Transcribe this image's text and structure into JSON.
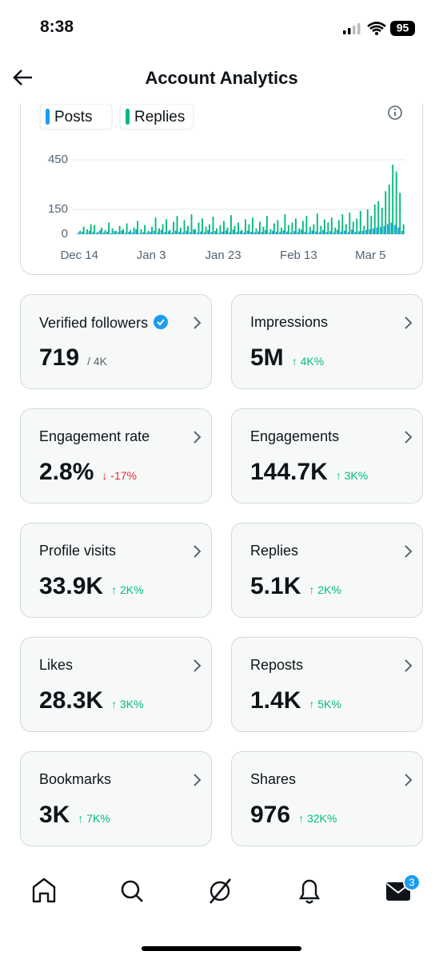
{
  "status_bar": {
    "time": "8:38",
    "battery": "95"
  },
  "header": {
    "title": "Account Analytics"
  },
  "chart_data": {
    "type": "bar",
    "categories": [
      "Dec 14",
      null,
      null,
      null,
      null,
      null,
      null,
      null,
      null,
      null,
      null,
      null,
      null,
      null,
      null,
      null,
      null,
      null,
      null,
      null,
      "Jan 3",
      null,
      null,
      null,
      null,
      null,
      null,
      null,
      null,
      null,
      null,
      null,
      null,
      null,
      null,
      null,
      null,
      null,
      null,
      null,
      "Jan 23",
      null,
      null,
      null,
      null,
      null,
      null,
      null,
      null,
      null,
      null,
      null,
      null,
      null,
      null,
      null,
      null,
      null,
      null,
      null,
      null,
      "Feb 13",
      null,
      null,
      null,
      null,
      null,
      null,
      null,
      null,
      null,
      null,
      null,
      null,
      null,
      null,
      null,
      null,
      null,
      null,
      null,
      "Mar 5",
      null,
      null,
      null,
      null,
      null,
      null,
      null,
      null,
      null
    ],
    "series": [
      {
        "name": "Posts",
        "color": "#1d9bf0",
        "values": [
          10,
          15,
          5,
          20,
          12,
          8,
          25,
          10,
          15,
          5,
          18,
          12,
          22,
          8,
          14,
          10,
          30,
          6,
          12,
          9,
          15,
          20,
          10,
          25,
          12,
          18,
          8,
          22,
          14,
          10,
          20,
          12,
          28,
          9,
          16,
          11,
          24,
          13,
          19,
          7,
          15,
          22,
          10,
          26,
          12,
          18,
          9,
          21,
          14,
          11,
          17,
          13,
          25,
          8,
          20,
          15,
          11,
          23,
          16,
          10,
          19,
          12,
          27,
          14,
          9,
          22,
          16,
          11,
          24,
          13,
          18,
          10,
          26,
          15,
          21,
          12,
          28,
          14,
          17,
          20,
          25,
          30,
          35,
          40,
          45,
          50,
          60,
          70,
          55,
          40,
          20
        ]
      },
      {
        "name": "Replies",
        "color": "#00ba7c",
        "values": [
          20,
          45,
          30,
          60,
          55,
          15,
          40,
          25,
          70,
          35,
          20,
          50,
          30,
          65,
          25,
          40,
          80,
          30,
          55,
          20,
          45,
          100,
          35,
          60,
          90,
          25,
          75,
          110,
          40,
          85,
          50,
          120,
          30,
          70,
          95,
          45,
          60,
          105,
          35,
          55,
          80,
          40,
          115,
          50,
          70,
          25,
          90,
          60,
          100,
          35,
          75,
          45,
          110,
          30,
          65,
          85,
          40,
          120,
          55,
          70,
          95,
          35,
          80,
          110,
          45,
          60,
          125,
          50,
          90,
          70,
          100,
          40,
          85,
          120,
          60,
          130,
          75,
          95,
          140,
          50,
          150,
          110,
          180,
          200,
          160,
          260,
          300,
          420,
          380,
          250,
          60
        ]
      }
    ],
    "ylim": [
      0,
      450
    ],
    "yticks": [
      0,
      150,
      450
    ],
    "grid": true
  },
  "cards": [
    {
      "title": "Verified followers",
      "value": "719",
      "sub": "/ 4K",
      "sub_color": "#536471"
    },
    {
      "title": "Impressions",
      "value": "5M",
      "sub": "↑ 4K%",
      "sub_color": "#00ba7c"
    },
    {
      "title": "Engagement rate",
      "value": "2.8%",
      "sub": "↓ -17%",
      "sub_color": "#f4212e"
    },
    {
      "title": "Engagements",
      "value": "144.7K",
      "sub": "↑ 3K%",
      "sub_color": "#00ba7c"
    },
    {
      "title": "Profile visits",
      "value": "33.9K",
      "sub": "↑ 2K%",
      "sub_color": "#00ba7c"
    },
    {
      "title": "Replies",
      "value": "5.1K",
      "sub": "↑ 2K%",
      "sub_color": "#00ba7c"
    },
    {
      "title": "Likes",
      "value": "28.3K",
      "sub": "↑ 3K%",
      "sub_color": "#00ba7c"
    },
    {
      "title": "Reposts",
      "value": "1.4K",
      "sub": "↑ 5K%",
      "sub_color": "#00ba7c"
    },
    {
      "title": "Bookmarks",
      "value": "3K",
      "sub": "↑ 7K%",
      "sub_color": "#00ba7c"
    },
    {
      "title": "Shares",
      "value": "976",
      "sub": "↑ 32K%",
      "sub_color": "#00ba7c"
    }
  ],
  "nav": {
    "badge": "3"
  }
}
